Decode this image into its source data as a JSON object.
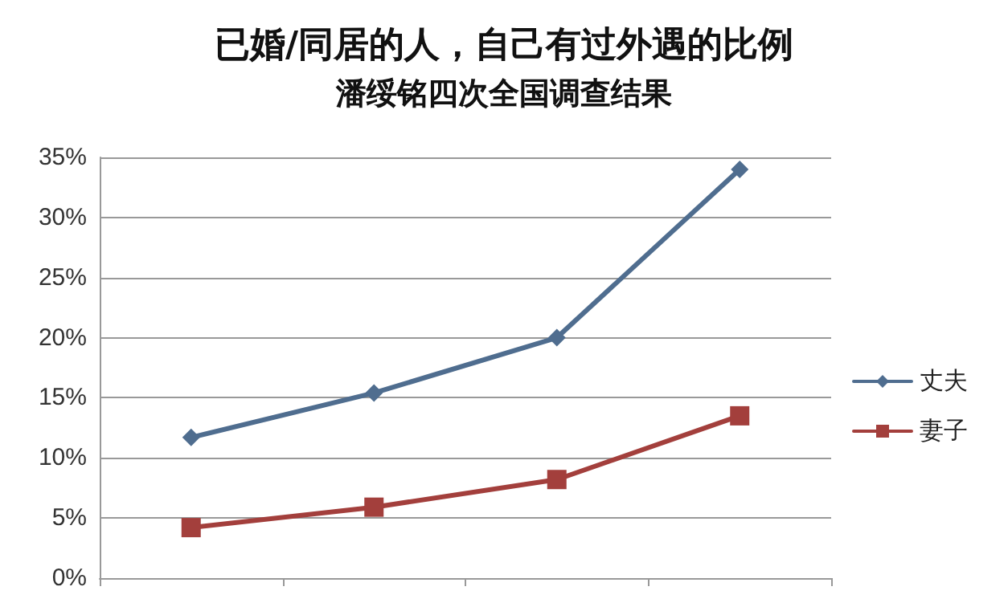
{
  "chart_data": {
    "type": "line",
    "title": "已婚/同居的人，自己有过外遇的比例",
    "subtitle": "潘绥铭四次全国调查结果",
    "categories": [
      null,
      null,
      null,
      null
    ],
    "series": [
      {
        "name": "丈夫",
        "color": "#4f6d8f",
        "marker": "diamond",
        "values": [
          11.7,
          15.4,
          20,
          34
        ]
      },
      {
        "name": "妻子",
        "color": "#a33f3c",
        "marker": "square",
        "values": [
          4.2,
          5.9,
          8.2,
          13.5
        ]
      }
    ],
    "ylim": [
      0,
      35
    ],
    "yticks": [
      {
        "value": 0,
        "label": "0%"
      },
      {
        "value": 5,
        "label": "5%"
      },
      {
        "value": 10,
        "label": "10%"
      },
      {
        "value": 15,
        "label": "15%"
      },
      {
        "value": 20,
        "label": "20%"
      },
      {
        "value": 25,
        "label": "25%"
      },
      {
        "value": 30,
        "label": "30%"
      },
      {
        "value": 35,
        "label": "35%"
      }
    ],
    "grid": "y",
    "legend": "right",
    "line_style": "solid"
  }
}
